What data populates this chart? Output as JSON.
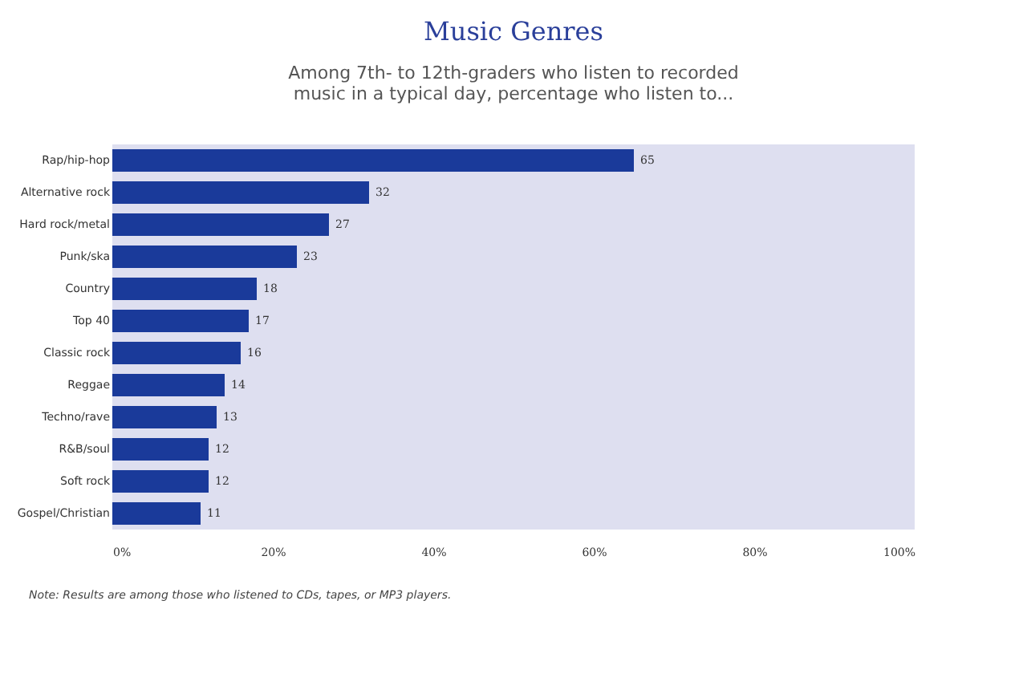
{
  "chart_data": {
    "type": "bar",
    "orientation": "horizontal",
    "title": "Music Genres",
    "subtitle": "Among 7th- to 12th-graders who listen to recorded music in a typical day, percentage who listen to...",
    "categories": [
      "Rap/hip-hop",
      "Alternative rock",
      "Hard rock/metal",
      "Punk/ska",
      "Country",
      "Top 40",
      "Classic rock",
      "Reggae",
      "Techno/rave",
      "R&B/soul",
      "Soft rock",
      "Gospel/Christian"
    ],
    "values": [
      65,
      32,
      27,
      23,
      18,
      17,
      16,
      14,
      13,
      12,
      12,
      11
    ],
    "color": "#1a3a9a",
    "data_labels": true,
    "xlim": [
      0,
      100
    ],
    "xticks": [
      {
        "value": 0,
        "label": "0%"
      },
      {
        "value": 20,
        "label": "20%"
      },
      {
        "value": 40,
        "label": "40%"
      },
      {
        "value": 60,
        "label": "60%"
      },
      {
        "value": 80,
        "label": "80%"
      },
      {
        "value": 100,
        "label": "100%"
      }
    ],
    "annotations": [
      "Note: Results are among those who listened to CDs, tapes, or MP3 players."
    ]
  }
}
